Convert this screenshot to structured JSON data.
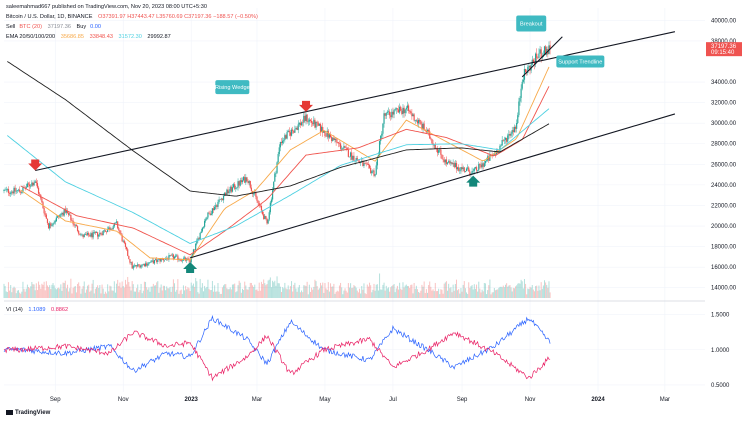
{
  "header": {
    "author": "saleemahmad667 published on TradingView.com, Nov 20, 2023 08:00 UTC+5:30",
    "symbol": "Bitcoin / U.S. Dollar, 1D, BINANCE",
    "ohlc": "O37391.97 H37443.47 L35760.69 C37197.36 −188.57 (−0.50%)",
    "sell_label": "Sell",
    "sell_value": "BTC (20)",
    "buy_label": "Buy",
    "spread": "37197.36",
    "buy_value": "0.00",
    "ema_label": "EMA 20/50/100/200",
    "ema_values": [
      "35686.85",
      "33848.43",
      "31572.30",
      "29992.87"
    ],
    "vi_label": "VI (14)",
    "vi_values": [
      "1.1089",
      "0.8862"
    ],
    "brand": "TradingView"
  },
  "colors": {
    "up": "#26a69a",
    "down": "#ef5350",
    "ema20": "#f7a94a",
    "ema50": "#f0554e",
    "ema100": "#4dd0e1",
    "ema200": "#1f1f1f",
    "callout": "#3fbac2",
    "vi_plus": "#2962ff",
    "vi_minus": "#e91e63",
    "price_badge": "#ef5350"
  },
  "chart_data": [
    {
      "type": "candlestick",
      "x_tick_labels": [
        "Sep",
        "Nov",
        "2023",
        "Mar",
        "May",
        "Jul",
        "Sep",
        "Nov",
        "2024",
        "Mar"
      ],
      "y_tick_labels": [
        "40000.00",
        "38000.00",
        "34000.00",
        "32000.00",
        "30000.00",
        "28000.00",
        "26000.00",
        "24000.00",
        "22000.00",
        "20000.00",
        "18000.00",
        "16000.00",
        "14000.00"
      ],
      "ylim": [
        13000,
        41200
      ],
      "last_price_label": "37197.36",
      "last_price_countdown": "09:15:40",
      "last_price": 37197.36,
      "price_anchors": [
        [
          "2022-08-01",
          23400
        ],
        [
          "2022-08-14",
          24400
        ],
        [
          "2022-08-26",
          20000
        ],
        [
          "2022-09-10",
          21500
        ],
        [
          "2022-09-25",
          19000
        ],
        [
          "2022-10-10",
          19200
        ],
        [
          "2022-10-26",
          20200
        ],
        [
          "2022-11-09",
          16000
        ],
        [
          "2022-11-20",
          16300
        ],
        [
          "2022-12-15",
          17000
        ],
        [
          "2022-12-31",
          16600
        ],
        [
          "2023-01-14",
          20800
        ],
        [
          "2023-01-31",
          23100
        ],
        [
          "2023-02-20",
          24700
        ],
        [
          "2023-03-10",
          20200
        ],
        [
          "2023-03-22",
          28200
        ],
        [
          "2023-04-14",
          30500
        ],
        [
          "2023-04-30",
          29200
        ],
        [
          "2023-05-25",
          26800
        ],
        [
          "2023-06-15",
          25100
        ],
        [
          "2023-06-23",
          30700
        ],
        [
          "2023-07-13",
          31400
        ],
        [
          "2023-07-31",
          29200
        ],
        [
          "2023-08-18",
          26100
        ],
        [
          "2023-09-11",
          25200
        ],
        [
          "2023-09-30",
          27000
        ],
        [
          "2023-10-20",
          29900
        ],
        [
          "2023-10-25",
          34500
        ],
        [
          "2023-11-09",
          36700
        ],
        [
          "2023-11-19",
          37197
        ]
      ],
      "ema_anchors": {
        "ema20": [
          [
            "2022-08-01",
            23500
          ],
          [
            "2022-09-10",
            20500
          ],
          [
            "2022-10-26",
            19500
          ],
          [
            "2022-11-25",
            16900
          ],
          [
            "2022-12-31",
            16700
          ],
          [
            "2023-01-31",
            21700
          ],
          [
            "2023-02-28",
            23500
          ],
          [
            "2023-03-31",
            27400
          ],
          [
            "2023-04-30",
            29300
          ],
          [
            "2023-06-15",
            26300
          ],
          [
            "2023-07-13",
            30300
          ],
          [
            "2023-08-18",
            28200
          ],
          [
            "2023-09-20",
            26300
          ],
          [
            "2023-10-20",
            28500
          ],
          [
            "2023-11-19",
            35700
          ]
        ],
        "ema50": [
          [
            "2022-08-01",
            23900
          ],
          [
            "2022-09-20",
            21000
          ],
          [
            "2022-11-10",
            19800
          ],
          [
            "2022-12-31",
            17200
          ],
          [
            "2023-01-31",
            19500
          ],
          [
            "2023-03-10",
            22600
          ],
          [
            "2023-04-14",
            26900
          ],
          [
            "2023-05-31",
            27600
          ],
          [
            "2023-07-13",
            29400
          ],
          [
            "2023-08-18",
            28600
          ],
          [
            "2023-09-30",
            26800
          ],
          [
            "2023-10-25",
            28400
          ],
          [
            "2023-11-19",
            33800
          ]
        ],
        "ema100": [
          [
            "2022-07-20",
            28800
          ],
          [
            "2022-09-10",
            24300
          ],
          [
            "2022-11-10",
            21300
          ],
          [
            "2022-12-31",
            18300
          ],
          [
            "2023-02-10",
            20000
          ],
          [
            "2023-03-31",
            23000
          ],
          [
            "2023-05-15",
            25900
          ],
          [
            "2023-07-13",
            27900
          ],
          [
            "2023-08-31",
            28000
          ],
          [
            "2023-10-05",
            27400
          ],
          [
            "2023-11-19",
            31500
          ]
        ],
        "ema200": [
          [
            "2022-07-20",
            36000
          ],
          [
            "2022-09-10",
            32300
          ],
          [
            "2022-11-10",
            27300
          ],
          [
            "2022-12-31",
            23400
          ],
          [
            "2023-02-10",
            22900
          ],
          [
            "2023-03-31",
            23900
          ],
          [
            "2023-05-15",
            25700
          ],
          [
            "2023-07-13",
            27400
          ],
          [
            "2023-08-31",
            27600
          ],
          [
            "2023-10-05",
            27200
          ],
          [
            "2023-11-19",
            30000
          ]
        ]
      },
      "trendlines": [
        {
          "from": [
            "2022-08-14",
            25400
          ],
          "to": [
            "2024-03-10",
            38900
          ]
        },
        {
          "from": [
            "2022-12-31",
            16900
          ],
          "to": [
            "2024-03-10",
            30900
          ]
        },
        {
          "from": [
            "2023-10-25",
            34500
          ],
          "to": [
            "2023-11-30",
            38400
          ]
        }
      ],
      "annotations": [
        {
          "text": "Rising Wedge",
          "at": [
            "2023-01-28",
            33500
          ]
        },
        {
          "text": "Breakout",
          "at": [
            "2023-10-25",
            39600
          ]
        },
        {
          "text": "Support Trendline",
          "at": [
            "2023-11-30",
            36000
          ]
        }
      ],
      "markers": [
        {
          "kind": "down-arrow",
          "at": [
            "2022-08-14",
            25400
          ]
        },
        {
          "kind": "down-arrow",
          "at": [
            "2023-04-14",
            31100
          ]
        },
        {
          "kind": "up-arrow",
          "at": [
            "2022-12-31",
            16500
          ]
        },
        {
          "kind": "up-arrow",
          "at": [
            "2023-09-11",
            24900
          ]
        }
      ]
    },
    {
      "type": "line",
      "name_label": "VI (14)",
      "y_tick_labels": [
        "1.5000",
        "1.0000",
        "0.5000"
      ],
      "ylim": [
        0.4,
        1.65
      ],
      "series": [
        {
          "name": "VI+",
          "anchors": [
            [
              "2022-08-01",
              1.0
            ],
            [
              "2022-09-10",
              0.95
            ],
            [
              "2022-10-20",
              1.05
            ],
            [
              "2022-11-10",
              0.7
            ],
            [
              "2022-12-10",
              0.95
            ],
            [
              "2022-12-31",
              0.9
            ],
            [
              "2023-01-20",
              1.45
            ],
            [
              "2023-02-20",
              1.15
            ],
            [
              "2023-03-10",
              0.8
            ],
            [
              "2023-03-31",
              1.4
            ],
            [
              "2023-04-30",
              1.0
            ],
            [
              "2023-06-10",
              0.85
            ],
            [
              "2023-07-01",
              1.3
            ],
            [
              "2023-08-01",
              1.0
            ],
            [
              "2023-08-25",
              0.75
            ],
            [
              "2023-09-30",
              1.05
            ],
            [
              "2023-10-31",
              1.45
            ],
            [
              "2023-11-19",
              1.1
            ]
          ]
        },
        {
          "name": "VI−",
          "anchors": [
            [
              "2022-08-01",
              1.0
            ],
            [
              "2022-09-10",
              1.05
            ],
            [
              "2022-10-20",
              0.95
            ],
            [
              "2022-11-10",
              1.25
            ],
            [
              "2022-12-10",
              1.05
            ],
            [
              "2022-12-31",
              1.1
            ],
            [
              "2023-01-20",
              0.6
            ],
            [
              "2023-02-20",
              0.9
            ],
            [
              "2023-03-10",
              1.2
            ],
            [
              "2023-03-31",
              0.65
            ],
            [
              "2023-04-30",
              1.0
            ],
            [
              "2023-06-10",
              1.15
            ],
            [
              "2023-07-01",
              0.75
            ],
            [
              "2023-08-01",
              1.0
            ],
            [
              "2023-08-25",
              1.25
            ],
            [
              "2023-09-30",
              0.95
            ],
            [
              "2023-10-31",
              0.6
            ],
            [
              "2023-11-19",
              0.89
            ]
          ]
        }
      ]
    }
  ]
}
